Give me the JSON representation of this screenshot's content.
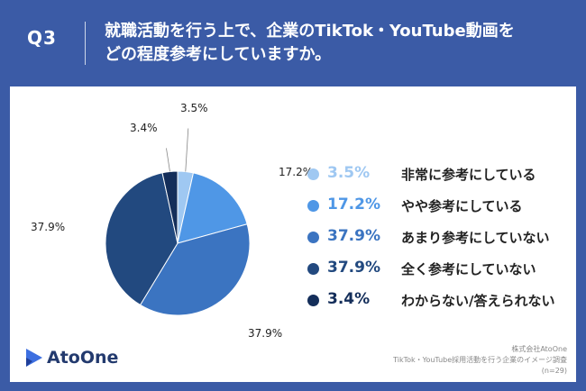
{
  "header": {
    "question_number": "Q3",
    "title_line1": "就職活動を行う上で、企業のTikTok・YouTube動画を",
    "title_line2": "どの程度参考にしていますか。"
  },
  "chart_data": {
    "type": "pie",
    "title": "",
    "slices": [
      {
        "label": "非常に参考にしている",
        "value": 3.5,
        "display": "3.5%",
        "color": "#9fc8f2"
      },
      {
        "label": "やや参考にしている",
        "value": 17.2,
        "display": "17.2%",
        "color": "#4f97e6"
      },
      {
        "label": "あまり参考にしていない",
        "value": 37.9,
        "display": "37.9%",
        "color": "#3b74c1"
      },
      {
        "label": "全く参考にしていない",
        "value": 37.9,
        "display": "37.9%",
        "color": "#22497f"
      },
      {
        "label": "わからない/答えられない",
        "value": 3.4,
        "display": "3.4%",
        "color": "#142e5a"
      }
    ],
    "legend_position": "right"
  },
  "logo": {
    "text": "AtoOne"
  },
  "source": {
    "line1": "株式会社AtoOne",
    "line2": "TikTok・YouTube採用活動を行う企業のイメージ調査",
    "line3": "(n=29)"
  },
  "colors": {
    "background": "#3b5ba6",
    "card": "#ffffff",
    "logo_mark": "#3d6fe0"
  }
}
